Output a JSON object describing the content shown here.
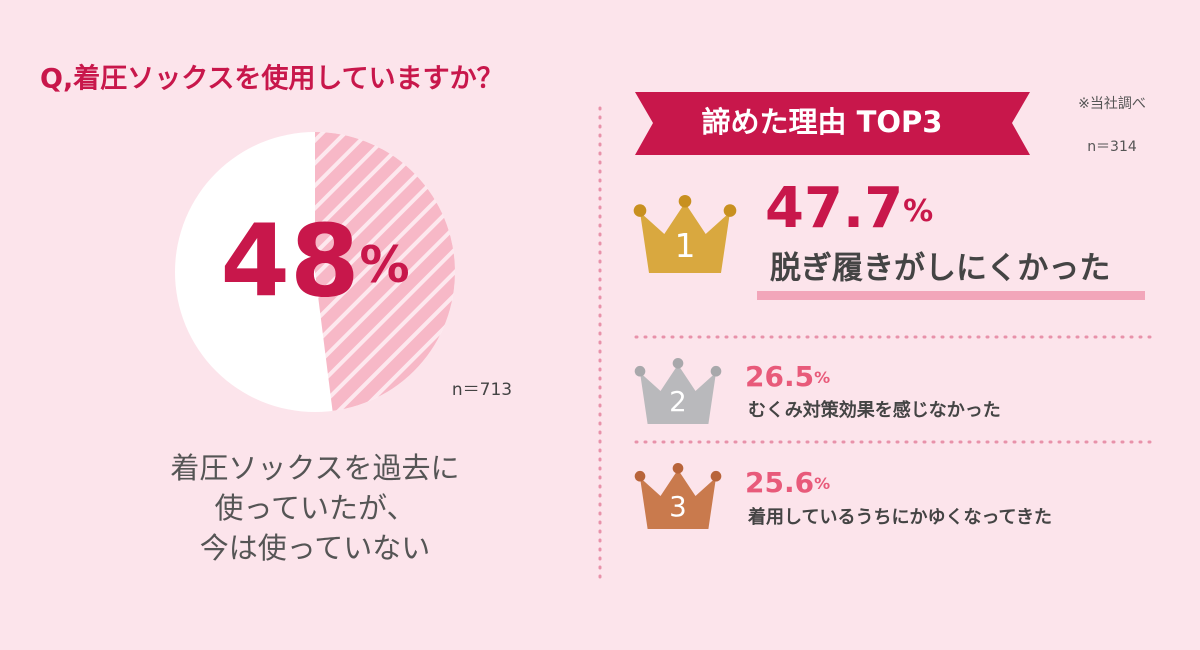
{
  "chart_data": {
    "type": "pie",
    "title": "Q,着圧ソックスを使用していますか？",
    "values": [
      48
    ],
    "value_labels": [
      "48%"
    ],
    "color": "#f4a3b7",
    "n_label": "n＝713",
    "caption": [
      "着圧ソックスを過去に",
      "使っていたが、",
      "今は使っていない"
    ]
  },
  "ranking": {
    "title": "諦めた理由 TOP3",
    "note": "※当社調べ",
    "n_label": "n＝314",
    "items": [
      {
        "rank": "1",
        "value_label": "47.7%",
        "label": "脱ぎ履きがしにくかった"
      },
      {
        "rank": "2",
        "value_label": "26.5%",
        "label": "むくみ対策効果を感じなかった"
      },
      {
        "rank": "3",
        "value_label": "25.6%",
        "label": "着用しているうちにかゆくなってきた"
      }
    ]
  }
}
